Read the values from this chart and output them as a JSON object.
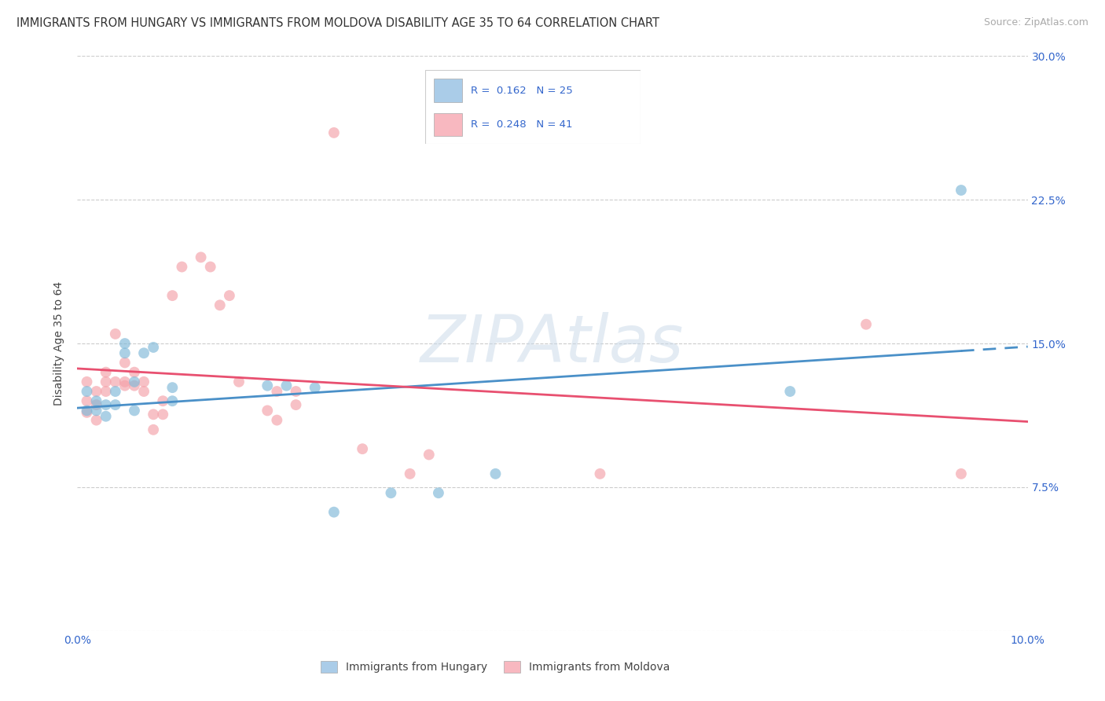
{
  "title": "IMMIGRANTS FROM HUNGARY VS IMMIGRANTS FROM MOLDOVA DISABILITY AGE 35 TO 64 CORRELATION CHART",
  "source": "Source: ZipAtlas.com",
  "ylabel": "Disability Age 35 to 64",
  "xlim": [
    0.0,
    0.1
  ],
  "ylim": [
    0.0,
    0.3
  ],
  "xticks": [
    0.0,
    0.02,
    0.04,
    0.06,
    0.08,
    0.1
  ],
  "yticks": [
    0.0,
    0.075,
    0.15,
    0.225,
    0.3
  ],
  "xtick_labels": [
    "0.0%",
    "",
    "",
    "",
    "",
    "10.0%"
  ],
  "ytick_labels_right": [
    "",
    "7.5%",
    "15.0%",
    "22.5%",
    "30.0%"
  ],
  "r_hungary": 0.162,
  "n_hungary": 25,
  "r_moldova": 0.248,
  "n_moldova": 41,
  "watermark": "ZIPAtlas",
  "hungary_scatter": [
    [
      0.001,
      0.125
    ],
    [
      0.001,
      0.115
    ],
    [
      0.002,
      0.12
    ],
    [
      0.002,
      0.115
    ],
    [
      0.003,
      0.118
    ],
    [
      0.003,
      0.112
    ],
    [
      0.004,
      0.125
    ],
    [
      0.004,
      0.118
    ],
    [
      0.005,
      0.145
    ],
    [
      0.005,
      0.15
    ],
    [
      0.006,
      0.13
    ],
    [
      0.006,
      0.115
    ],
    [
      0.007,
      0.145
    ],
    [
      0.008,
      0.148
    ],
    [
      0.01,
      0.127
    ],
    [
      0.01,
      0.12
    ],
    [
      0.02,
      0.128
    ],
    [
      0.022,
      0.128
    ],
    [
      0.025,
      0.127
    ],
    [
      0.027,
      0.062
    ],
    [
      0.033,
      0.072
    ],
    [
      0.038,
      0.072
    ],
    [
      0.044,
      0.082
    ],
    [
      0.075,
      0.125
    ],
    [
      0.093,
      0.23
    ]
  ],
  "moldova_scatter": [
    [
      0.001,
      0.13
    ],
    [
      0.001,
      0.12
    ],
    [
      0.001,
      0.114
    ],
    [
      0.002,
      0.125
    ],
    [
      0.002,
      0.118
    ],
    [
      0.002,
      0.11
    ],
    [
      0.003,
      0.125
    ],
    [
      0.003,
      0.13
    ],
    [
      0.003,
      0.135
    ],
    [
      0.004,
      0.155
    ],
    [
      0.004,
      0.13
    ],
    [
      0.005,
      0.13
    ],
    [
      0.005,
      0.14
    ],
    [
      0.005,
      0.128
    ],
    [
      0.006,
      0.135
    ],
    [
      0.006,
      0.128
    ],
    [
      0.007,
      0.125
    ],
    [
      0.007,
      0.13
    ],
    [
      0.008,
      0.105
    ],
    [
      0.008,
      0.113
    ],
    [
      0.009,
      0.12
    ],
    [
      0.009,
      0.113
    ],
    [
      0.01,
      0.175
    ],
    [
      0.011,
      0.19
    ],
    [
      0.013,
      0.195
    ],
    [
      0.014,
      0.19
    ],
    [
      0.015,
      0.17
    ],
    [
      0.016,
      0.175
    ],
    [
      0.017,
      0.13
    ],
    [
      0.02,
      0.115
    ],
    [
      0.021,
      0.11
    ],
    [
      0.021,
      0.125
    ],
    [
      0.023,
      0.125
    ],
    [
      0.023,
      0.118
    ],
    [
      0.027,
      0.26
    ],
    [
      0.03,
      0.095
    ],
    [
      0.035,
      0.082
    ],
    [
      0.037,
      0.092
    ],
    [
      0.055,
      0.082
    ],
    [
      0.083,
      0.16
    ],
    [
      0.093,
      0.082
    ]
  ],
  "scatter_color_hungary": "#7eb8d8",
  "scatter_color_moldova": "#f4a0a8",
  "scatter_alpha": 0.65,
  "scatter_size": 100,
  "line_color_hungary": "#4a90c8",
  "line_color_moldova": "#e85070",
  "background_color": "#ffffff",
  "grid_color": "#cccccc",
  "title_fontsize": 10.5,
  "axis_label_fontsize": 10,
  "tick_fontsize": 10,
  "legend_color_hungary": "#aacce8",
  "legend_color_moldova": "#f8b8c0"
}
